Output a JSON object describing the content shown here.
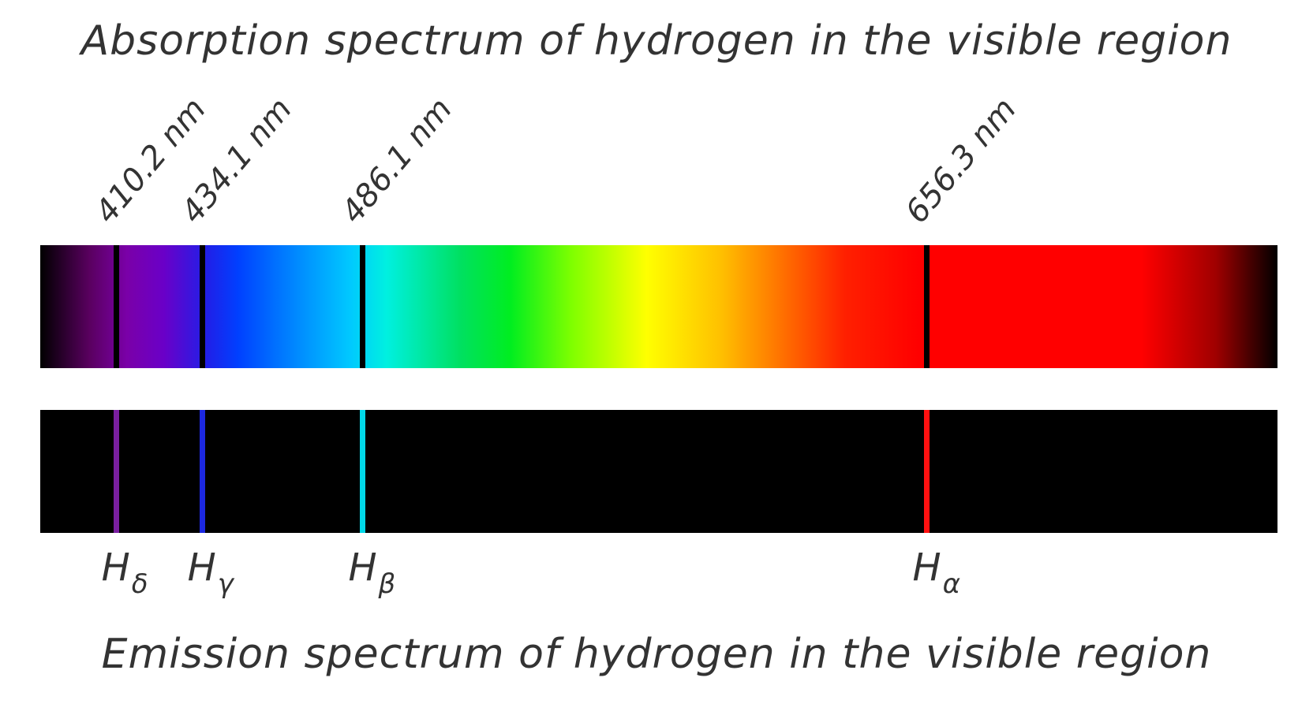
{
  "titles": {
    "absorption": "Absorption spectrum of hydrogen in the visible region",
    "emission": "Emission spectrum of hydrogen in the visible region"
  },
  "lines": [
    {
      "id": "h-delta",
      "wavelength_label": "410.2 nm",
      "symbol": "H",
      "subscript": "δ",
      "color": "#7a1fa0",
      "fraction": 0.061
    },
    {
      "id": "h-gamma",
      "wavelength_label": "434.1 nm",
      "symbol": "H",
      "subscript": "γ",
      "color": "#1c28e0",
      "fraction": 0.1305
    },
    {
      "id": "h-beta",
      "wavelength_label": "486.1 nm",
      "symbol": "H",
      "subscript": "β",
      "color": "#00d8e8",
      "fraction": 0.2605
    },
    {
      "id": "h-alpha",
      "wavelength_label": "656.3 nm",
      "symbol": "H",
      "subscript": "α",
      "color": "#ff1010",
      "fraction": 0.7165
    }
  ],
  "absorption_line_color": "#000000"
}
